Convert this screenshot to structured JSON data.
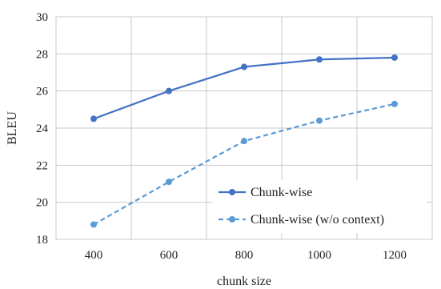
{
  "chart_data": {
    "type": "line",
    "title": "",
    "xlabel": "chunk size",
    "ylabel": "BLEU",
    "x": [
      400,
      600,
      800,
      1000,
      1200
    ],
    "x_tick_labels": [
      "400",
      "600",
      "800",
      "1000",
      "1200"
    ],
    "ylim": [
      18,
      30
    ],
    "y_ticks": [
      18,
      20,
      22,
      24,
      26,
      28,
      30
    ],
    "y_tick_labels": [
      "18",
      "20",
      "22",
      "24",
      "26",
      "28",
      "30"
    ],
    "grid": true,
    "legend_position": "bottom-right",
    "series": [
      {
        "name": "Chunk-wise",
        "values": [
          24.5,
          26.0,
          27.3,
          27.7,
          27.8
        ],
        "color": "#4472c4",
        "line_style": "solid"
      },
      {
        "name": "Chunk-wise (w/o context)",
        "values": [
          18.8,
          21.1,
          23.3,
          24.4,
          25.3
        ],
        "color": "#5b9bd5",
        "line_style": "dashed"
      }
    ]
  }
}
